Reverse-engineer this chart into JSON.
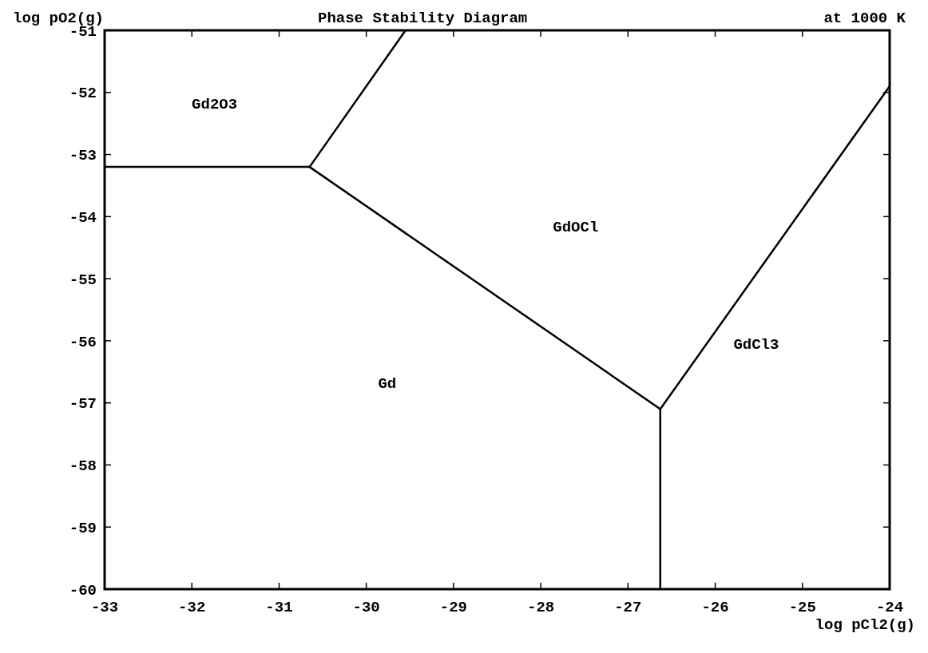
{
  "chart_data": {
    "type": "line",
    "title": "Phase Stability Diagram",
    "xlabel": "log pCl2(g)",
    "ylabel": "log pO2(g)",
    "annotations": [
      "at  1000 K",
      "Gd2O3",
      "GdOCl",
      "GdCl3",
      "Gd"
    ],
    "series": [
      {
        "color": "#000000",
        "x": [
          -33,
          -30.65
        ],
        "values": [
          -53.2,
          -53.2
        ]
      },
      {
        "color": "#000000",
        "x": [
          -30.65,
          -29.55
        ],
        "values": [
          -53.2,
          -51
        ]
      },
      {
        "color": "#000000",
        "x": [
          -30.65,
          -26.63
        ],
        "values": [
          -53.2,
          -57.1
        ]
      },
      {
        "color": "#000000",
        "x": [
          -26.63,
          -24
        ],
        "values": [
          -57.1,
          -51.9
        ]
      },
      {
        "color": "#000000",
        "x": [
          -26.63,
          -26.63
        ],
        "values": [
          -57.1,
          -60
        ]
      }
    ],
    "xlim": [
      -33,
      -24
    ],
    "xticks": [
      -33,
      -32,
      -31,
      -30,
      -29,
      -28,
      -27,
      -26,
      -25,
      -24
    ],
    "ylim": [
      -60,
      -51
    ],
    "yticks": [
      -60,
      -59,
      -58,
      -57,
      -56,
      -55,
      -54,
      -53,
      -52,
      -51
    ],
    "grid": false,
    "marker": "none",
    "line_style": "solid"
  }
}
